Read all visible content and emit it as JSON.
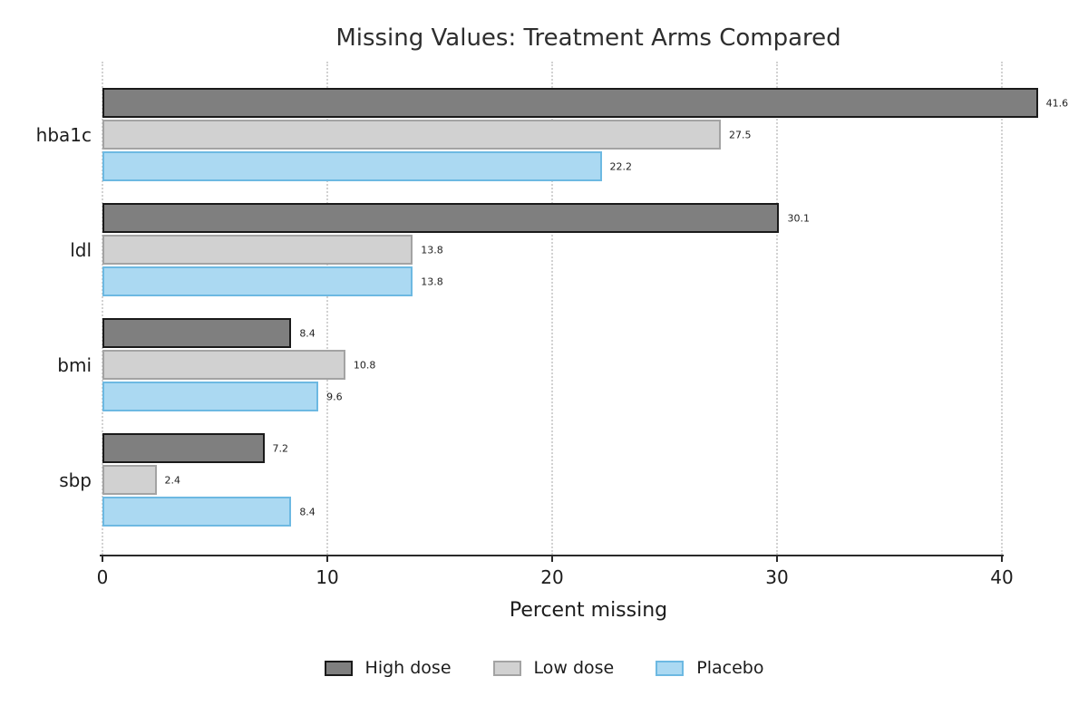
{
  "title": "Missing Values: Treatment Arms Compared",
  "chart_data": {
    "type": "bar",
    "orientation": "horizontal",
    "title": "Missing Values: Treatment Arms Compared",
    "xlabel": "Percent missing",
    "categories": [
      "hba1c",
      "ldl",
      "bmi",
      "sbp"
    ],
    "series": [
      {
        "name": "High dose",
        "values": [
          41.6,
          30.1,
          8.4,
          7.2
        ],
        "fill": "#7f7f7f",
        "stroke": "#1a1a1a"
      },
      {
        "name": "Low dose",
        "values": [
          27.5,
          13.8,
          10.8,
          2.4
        ],
        "fill": "#d1d1d1",
        "stroke": "#a3a3a3"
      },
      {
        "name": "Placebo",
        "values": [
          22.2,
          13.8,
          9.6,
          8.4
        ],
        "fill": "#abd9f2",
        "stroke": "#6db9e2"
      }
    ],
    "xlim": [
      0,
      40
    ],
    "xticks": [
      0,
      10,
      20,
      30,
      40
    ],
    "grid": "vertical-dotted",
    "value_labels": true,
    "legend_position": "bottom"
  }
}
